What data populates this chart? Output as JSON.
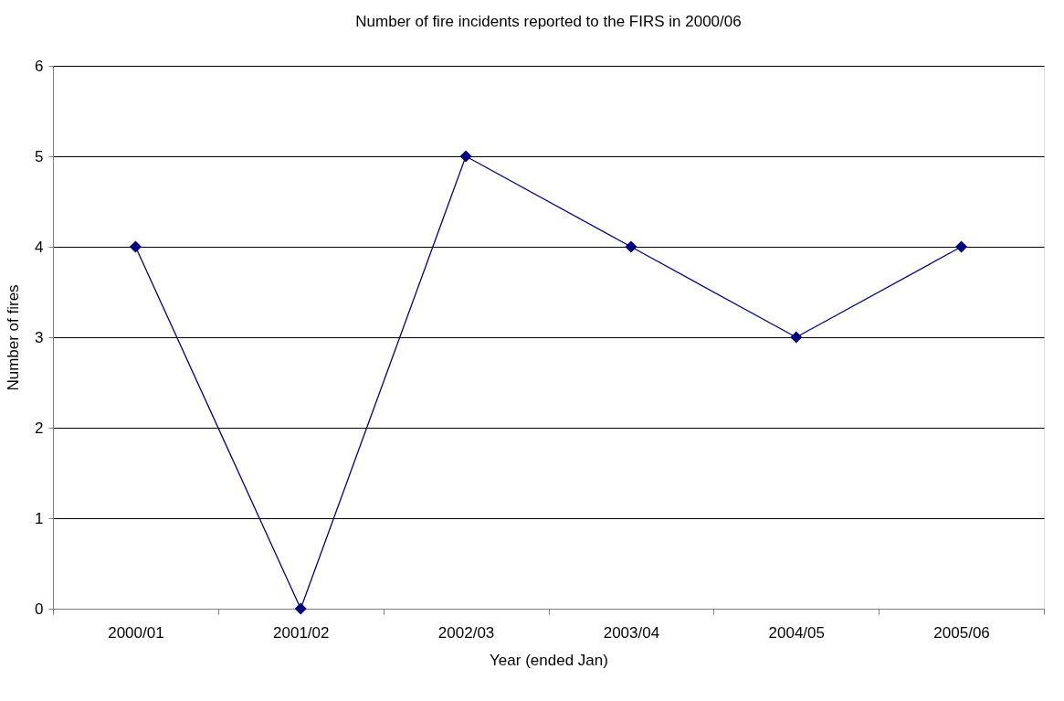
{
  "chart_data": {
    "type": "line",
    "title": "Number of fire incidents reported to the FIRS in 2000/06",
    "xlabel": "Year (ended Jan)",
    "ylabel": "Number of fires",
    "categories": [
      "2000/01",
      "2001/02",
      "2002/03",
      "2003/04",
      "2004/05",
      "2005/06"
    ],
    "series": [
      {
        "color": "#000080",
        "values": [
          4,
          0,
          5,
          4,
          3,
          4
        ]
      }
    ],
    "ylim": [
      0,
      6
    ],
    "yticks": [
      0,
      1,
      2,
      3,
      4,
      5,
      6
    ],
    "grid": "y",
    "marker": "diamond",
    "line_style": "solid"
  }
}
